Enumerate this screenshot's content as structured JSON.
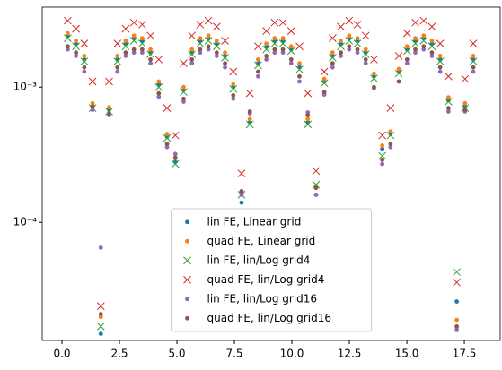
{
  "chart_data": {
    "type": "scatter",
    "log_y": true,
    "legend": "lower center",
    "x": [
      0.25,
      0.61,
      0.97,
      1.33,
      1.69,
      2.05,
      2.41,
      2.77,
      3.13,
      3.49,
      3.85,
      4.21,
      4.57,
      4.93,
      5.29,
      5.65,
      6.01,
      6.37,
      6.73,
      7.09,
      7.45,
      7.81,
      8.17,
      8.53,
      8.89,
      9.25,
      9.61,
      9.97,
      10.33,
      10.69,
      11.05,
      11.41,
      11.77,
      12.13,
      12.49,
      12.85,
      13.21,
      13.57,
      13.93,
      14.29,
      14.65,
      15.01,
      15.37,
      15.73,
      16.09,
      16.45,
      16.81,
      17.17,
      17.53,
      17.89
    ],
    "series": [
      {
        "name": "lin FE, Linear grid",
        "color": "#1f77b4",
        "marker": "dot",
        "values": [
          0.0024,
          0.0021,
          0.0016,
          0.00072,
          1.5e-05,
          0.00068,
          0.0016,
          0.0021,
          0.0023,
          0.0022,
          0.0018,
          0.00105,
          0.00043,
          0.00028,
          0.00095,
          0.0018,
          0.0022,
          0.0023,
          0.0021,
          0.0017,
          0.001,
          0.00014,
          0.00055,
          0.0015,
          0.002,
          0.0022,
          0.0022,
          0.0019,
          0.0014,
          0.00055,
          0.00016,
          0.0011,
          0.0017,
          0.0021,
          0.0023,
          0.0022,
          0.0018,
          0.0012,
          0.00035,
          0.00045,
          0.0013,
          0.0019,
          0.0022,
          0.0023,
          0.0021,
          0.0016,
          0.0008,
          2.6e-05,
          0.00072,
          0.0016
        ]
      },
      {
        "name": "quad FE, Linear grid",
        "color": "#ff7f0e",
        "marker": "dot",
        "values": [
          0.0025,
          0.0022,
          0.0017,
          0.00076,
          2e-05,
          0.00071,
          0.0017,
          0.0022,
          0.0024,
          0.0023,
          0.0019,
          0.0011,
          0.00045,
          0.0003,
          0.001,
          0.0019,
          0.0023,
          0.0024,
          0.0022,
          0.0018,
          0.00105,
          0.00017,
          0.00058,
          0.0016,
          0.0021,
          0.0023,
          0.0023,
          0.002,
          0.0015,
          0.00058,
          0.00018,
          0.00115,
          0.0018,
          0.0022,
          0.0024,
          0.0023,
          0.0019,
          0.00126,
          0.00037,
          0.00047,
          0.00136,
          0.002,
          0.0023,
          0.0024,
          0.0022,
          0.0017,
          0.00084,
          1.9e-05,
          0.00076,
          0.0017
        ]
      },
      {
        "name": "lin FE, lin/Log grid4",
        "color": "#2ca02c",
        "marker": "x",
        "values": [
          0.0023,
          0.002,
          0.00155,
          0.0007,
          1.7e-05,
          0.00066,
          0.00155,
          0.002,
          0.0022,
          0.0021,
          0.00175,
          0.001,
          0.00042,
          0.00027,
          0.00092,
          0.00175,
          0.0021,
          0.0022,
          0.002,
          0.00165,
          0.00097,
          0.00016,
          0.00053,
          0.00145,
          0.0019,
          0.0021,
          0.0021,
          0.00185,
          0.00135,
          0.00053,
          0.00019,
          0.00107,
          0.00165,
          0.002,
          0.0022,
          0.0021,
          0.00175,
          0.00116,
          0.00031,
          0.00044,
          0.00126,
          0.00185,
          0.0021,
          0.0022,
          0.002,
          0.00155,
          0.00078,
          4.3e-05,
          0.0007,
          0.00155
        ]
      },
      {
        "name": "quad FE, lin/Log grid4",
        "color": "#d62728",
        "marker": "x",
        "values": [
          0.0031,
          0.0027,
          0.0021,
          0.0011,
          2.4e-05,
          0.0011,
          0.0021,
          0.0027,
          0.003,
          0.0029,
          0.0024,
          0.0016,
          0.0007,
          0.00044,
          0.0015,
          0.0024,
          0.0029,
          0.0031,
          0.0028,
          0.0022,
          0.0013,
          0.00023,
          0.0009,
          0.002,
          0.0026,
          0.003,
          0.003,
          0.0026,
          0.002,
          0.0009,
          0.00024,
          0.0013,
          0.0023,
          0.0028,
          0.0031,
          0.0029,
          0.0024,
          0.0016,
          0.00044,
          0.0007,
          0.0017,
          0.0025,
          0.003,
          0.0031,
          0.0028,
          0.0021,
          0.0012,
          3.6e-05,
          0.00115,
          0.0021
        ]
      },
      {
        "name": "lin FE, lin/Log grid16",
        "color": "#9467bd",
        "marker": "dot",
        "values": [
          0.0019,
          0.0017,
          0.0013,
          0.00068,
          6.5e-05,
          0.00062,
          0.0013,
          0.0017,
          0.0018,
          0.0018,
          0.0015,
          0.00085,
          0.00036,
          0.00032,
          0.00078,
          0.0015,
          0.0018,
          0.0019,
          0.0017,
          0.0014,
          0.00082,
          0.00016,
          0.00064,
          0.0012,
          0.0016,
          0.0018,
          0.0018,
          0.0015,
          0.0011,
          0.00065,
          0.00016,
          0.00088,
          0.0014,
          0.0017,
          0.0019,
          0.0018,
          0.0015,
          0.00098,
          0.00027,
          0.00036,
          0.0011,
          0.0015,
          0.0018,
          0.0019,
          0.0017,
          0.0013,
          0.00066,
          1.6e-05,
          0.00066,
          0.0013
        ]
      },
      {
        "name": "quad FE, lin/Log grid16",
        "color": "#8c564b",
        "marker": "dot",
        "values": [
          0.002,
          0.0018,
          0.0014,
          0.00072,
          2.1e-05,
          0.00064,
          0.0014,
          0.0018,
          0.0019,
          0.0019,
          0.0016,
          0.0009,
          0.00038,
          0.0003,
          0.00082,
          0.0016,
          0.0019,
          0.002,
          0.0018,
          0.0015,
          0.00087,
          0.00017,
          0.00066,
          0.0013,
          0.0017,
          0.0019,
          0.0019,
          0.0016,
          0.0012,
          0.00062,
          0.00018,
          0.00092,
          0.0015,
          0.0018,
          0.002,
          0.0019,
          0.0016,
          0.001,
          0.00029,
          0.00038,
          0.0011,
          0.0016,
          0.0019,
          0.002,
          0.0018,
          0.0014,
          0.0007,
          1.7e-05,
          0.00068,
          0.0014
        ]
      }
    ],
    "xlim": [
      -0.86,
      19.06
    ],
    "xticks": [
      {
        "value": 0,
        "label": "0.0"
      },
      2.5,
      {
        "value": 5,
        "label": "5.0"
      },
      7.5,
      {
        "value": 10,
        "label": "10.0"
      },
      12.5,
      {
        "value": 15,
        "label": "15.0"
      },
      17.5
    ],
    "ylim": [
      1.34e-05,
      0.0039
    ],
    "yticks": [
      {
        "value": 0.0001,
        "label": "10⁻⁴"
      },
      {
        "value": 0.001,
        "label": "10⁻³"
      }
    ]
  }
}
